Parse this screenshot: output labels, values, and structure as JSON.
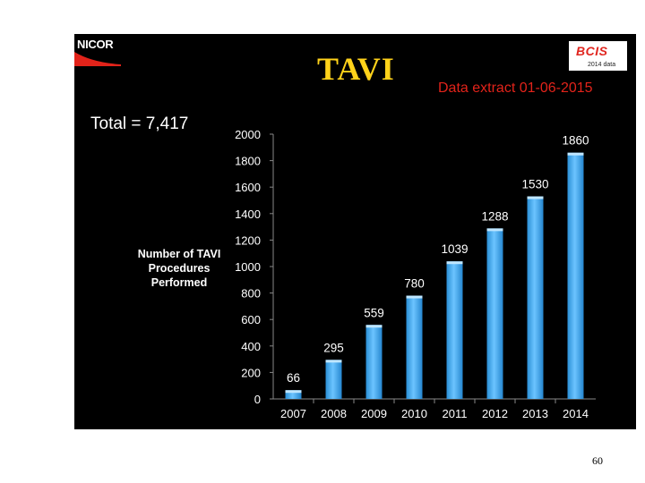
{
  "header": {
    "logo_text": "NICOR",
    "title": "TAVI",
    "bcis_logo": "BCIS",
    "bcis_subtitle": "2014 data",
    "data_extract": "Data extract 01-06-2015",
    "total": "Total = 7,417"
  },
  "footer": {
    "page_number": "60"
  },
  "colors": {
    "title": "#ffd21a",
    "accent_red": "#e2231a",
    "bar": "#3aa6ea",
    "background": "#000000"
  },
  "chart_data": {
    "type": "bar",
    "title": "",
    "ylabel": "Number of TAVI Procedures Performed",
    "xlabel": "",
    "categories": [
      "2007",
      "2008",
      "2009",
      "2010",
      "2011",
      "2012",
      "2013",
      "2014"
    ],
    "values": [
      66,
      295,
      559,
      780,
      1039,
      1288,
      1530,
      1860
    ],
    "ylim": [
      0,
      2000
    ],
    "yticks": [
      0,
      200,
      400,
      600,
      800,
      1000,
      1200,
      1400,
      1600,
      1800,
      2000
    ],
    "grid": false,
    "legend": "none"
  }
}
